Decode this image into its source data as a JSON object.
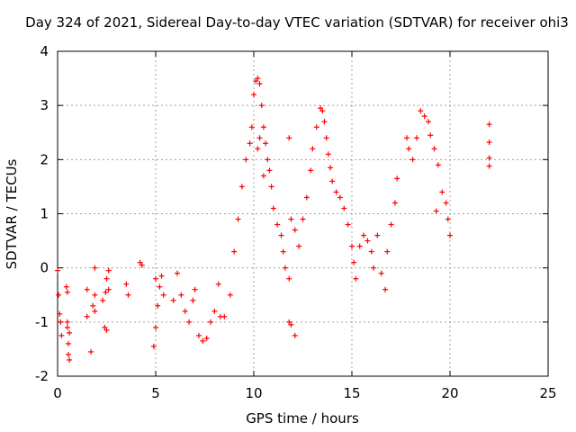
{
  "chart_data": {
    "type": "scatter",
    "title": "Day 324 of 2021, Sidereal Day-to-day VTEC variation (SDTVAR) for receiver ohi3",
    "xlabel": "GPS time / hours",
    "ylabel": "SDTVAR / TECUs",
    "xlim": [
      0,
      25
    ],
    "ylim": [
      -2,
      4
    ],
    "xticks": [
      "0",
      "5",
      "10",
      "15",
      "20",
      "25"
    ],
    "yticks": [
      "-2",
      "-1",
      "0",
      "1",
      "2",
      "3",
      "4"
    ],
    "grid": true,
    "marker": "plus",
    "color": "#ff0000",
    "series": [
      {
        "name": "SDTVAR",
        "points": [
          [
            0.0,
            -0.05
          ],
          [
            0.05,
            -0.5
          ],
          [
            0.1,
            -0.85
          ],
          [
            0.15,
            -1.0
          ],
          [
            0.2,
            -1.25
          ],
          [
            0.45,
            -0.35
          ],
          [
            0.5,
            -0.45
          ],
          [
            0.5,
            -1.1
          ],
          [
            0.55,
            -1.4
          ],
          [
            0.55,
            -1.6
          ],
          [
            0.6,
            -1.7
          ],
          [
            0.5,
            -1.0
          ],
          [
            0.6,
            -1.2
          ],
          [
            1.5,
            -0.4
          ],
          [
            1.5,
            -0.9
          ],
          [
            1.7,
            -1.55
          ],
          [
            1.8,
            -0.7
          ],
          [
            1.9,
            -0.5
          ],
          [
            1.9,
            -0.8
          ],
          [
            1.9,
            0.0
          ],
          [
            2.3,
            -0.6
          ],
          [
            2.4,
            -1.1
          ],
          [
            2.45,
            -0.45
          ],
          [
            2.5,
            -0.2
          ],
          [
            2.5,
            -1.15
          ],
          [
            2.6,
            -0.4
          ],
          [
            2.6,
            -0.05
          ],
          [
            3.5,
            -0.3
          ],
          [
            3.6,
            -0.5
          ],
          [
            4.2,
            0.1
          ],
          [
            4.3,
            0.05
          ],
          [
            4.9,
            -1.45
          ],
          [
            5.0,
            -1.1
          ],
          [
            5.0,
            -0.2
          ],
          [
            5.1,
            -0.7
          ],
          [
            5.2,
            -0.35
          ],
          [
            5.3,
            -0.15
          ],
          [
            5.4,
            -0.5
          ],
          [
            5.9,
            -0.6
          ],
          [
            6.1,
            -0.1
          ],
          [
            6.3,
            -0.5
          ],
          [
            6.5,
            -0.8
          ],
          [
            6.7,
            -1.0
          ],
          [
            6.9,
            -0.6
          ],
          [
            7.0,
            -0.4
          ],
          [
            7.2,
            -1.25
          ],
          [
            7.4,
            -1.35
          ],
          [
            7.6,
            -1.3
          ],
          [
            7.8,
            -1.0
          ],
          [
            8.0,
            -0.8
          ],
          [
            8.2,
            -0.3
          ],
          [
            8.3,
            -0.9
          ],
          [
            8.5,
            -0.9
          ],
          [
            8.8,
            -0.5
          ],
          [
            9.0,
            0.3
          ],
          [
            9.2,
            0.9
          ],
          [
            9.4,
            1.5
          ],
          [
            9.6,
            2.0
          ],
          [
            9.8,
            2.3
          ],
          [
            9.9,
            2.6
          ],
          [
            10.0,
            3.2
          ],
          [
            10.1,
            3.45
          ],
          [
            10.2,
            3.5
          ],
          [
            10.3,
            3.4
          ],
          [
            10.4,
            3.0
          ],
          [
            10.5,
            2.6
          ],
          [
            10.6,
            2.3
          ],
          [
            10.7,
            2.0
          ],
          [
            10.8,
            1.8
          ],
          [
            10.2,
            2.2
          ],
          [
            10.3,
            2.4
          ],
          [
            10.5,
            1.7
          ],
          [
            10.9,
            1.5
          ],
          [
            11.0,
            1.1
          ],
          [
            11.2,
            0.8
          ],
          [
            11.4,
            0.6
          ],
          [
            11.5,
            0.3
          ],
          [
            11.6,
            0.0
          ],
          [
            11.8,
            -0.2
          ],
          [
            11.8,
            -1.0
          ],
          [
            11.9,
            -1.05
          ],
          [
            12.1,
            -1.25
          ],
          [
            11.9,
            0.9
          ],
          [
            12.1,
            0.7
          ],
          [
            11.8,
            2.4
          ],
          [
            12.3,
            0.4
          ],
          [
            12.5,
            0.9
          ],
          [
            12.7,
            1.3
          ],
          [
            12.9,
            1.8
          ],
          [
            13.0,
            2.2
          ],
          [
            13.2,
            2.6
          ],
          [
            13.4,
            2.95
          ],
          [
            13.5,
            2.9
          ],
          [
            13.6,
            2.7
          ],
          [
            13.7,
            2.4
          ],
          [
            13.8,
            2.1
          ],
          [
            13.9,
            1.85
          ],
          [
            14.0,
            1.6
          ],
          [
            14.2,
            1.4
          ],
          [
            14.4,
            1.3
          ],
          [
            14.6,
            1.1
          ],
          [
            14.8,
            0.8
          ],
          [
            15.0,
            0.4
          ],
          [
            15.1,
            0.1
          ],
          [
            15.2,
            -0.2
          ],
          [
            15.4,
            0.4
          ],
          [
            15.6,
            0.6
          ],
          [
            15.8,
            0.5
          ],
          [
            16.0,
            0.3
          ],
          [
            16.1,
            0.0
          ],
          [
            16.3,
            0.6
          ],
          [
            16.5,
            -0.1
          ],
          [
            16.7,
            -0.4
          ],
          [
            16.8,
            0.3
          ],
          [
            17.0,
            0.8
          ],
          [
            17.2,
            1.2
          ],
          [
            17.3,
            1.65
          ],
          [
            17.8,
            2.4
          ],
          [
            17.9,
            2.2
          ],
          [
            18.1,
            2.0
          ],
          [
            18.3,
            2.4
          ],
          [
            18.5,
            2.9
          ],
          [
            18.7,
            2.8
          ],
          [
            18.9,
            2.7
          ],
          [
            19.0,
            2.45
          ],
          [
            19.2,
            2.2
          ],
          [
            19.4,
            1.9
          ],
          [
            19.6,
            1.4
          ],
          [
            19.8,
            1.2
          ],
          [
            19.9,
            0.9
          ],
          [
            20.0,
            0.6
          ],
          [
            19.3,
            1.05
          ],
          [
            22.0,
            2.65
          ],
          [
            22.0,
            2.32
          ],
          [
            22.0,
            2.03
          ],
          [
            22.0,
            1.88
          ]
        ]
      }
    ]
  }
}
